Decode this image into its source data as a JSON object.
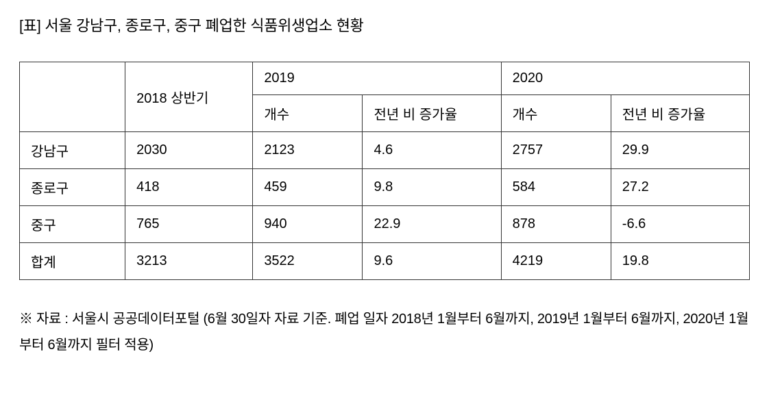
{
  "title": "[표] 서울 강남구, 종로구, 중구 폐업한 식품위생업소 현황",
  "table": {
    "headers": {
      "col_2018": "2018 상반기",
      "year_2019": "2019",
      "year_2020": "2020",
      "count": "개수",
      "rate": "전년 비 증가율"
    },
    "rows": [
      {
        "district": "강남구",
        "y2018": "2030",
        "y2019_count": "2123",
        "y2019_rate": "4.6",
        "y2020_count": "2757",
        "y2020_rate": "29.9"
      },
      {
        "district": "종로구",
        "y2018": "418",
        "y2019_count": "459",
        "y2019_rate": "9.8",
        "y2020_count": "584",
        "y2020_rate": "27.2"
      },
      {
        "district": "중구",
        "y2018": "765",
        "y2019_count": "940",
        "y2019_rate": "22.9",
        "y2020_count": "878",
        "y2020_rate": "-6.6"
      },
      {
        "district": "합계",
        "y2018": "3213",
        "y2019_count": "3522",
        "y2019_rate": "9.6",
        "y2020_count": "4219",
        "y2020_rate": "19.8"
      }
    ]
  },
  "footnote": "※ 자료 : 서울시 공공데이터포털 (6월 30일자 자료 기준. 폐업 일자 2018년 1월부터 6월까지, 2019년 1월부터 6월까지, 2020년 1월부터 6월까지 필터 적용)"
}
